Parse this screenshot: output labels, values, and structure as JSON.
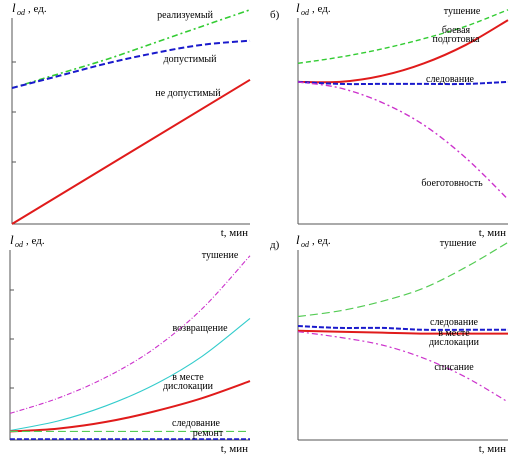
{
  "chart_data": [
    {
      "type": "line",
      "panel_label": "",
      "ylabel_main": "l",
      "ylabel_sub": "od",
      "ylabel_unit": ", ед.",
      "xlabel": "t, мин",
      "xlim": [
        0,
        10
      ],
      "ylim": [
        0,
        10
      ],
      "series": [
        {
          "name": "реализуемый",
          "color": "#33cc33",
          "dash": "6,3,2,3",
          "width": 1.6,
          "x": [
            0,
            2,
            4,
            6,
            8,
            10
          ],
          "y": [
            6.6,
            7.3,
            8.0,
            8.8,
            9.6,
            10.4
          ]
        },
        {
          "name": "допустимый",
          "color": "#1a1acc",
          "dash": "6,3",
          "width": 2,
          "x": [
            0,
            2,
            4,
            6,
            8,
            10
          ],
          "y": [
            6.6,
            7.2,
            7.8,
            8.3,
            8.7,
            8.9
          ]
        },
        {
          "name": "не допустимый",
          "color": "#e01b1b",
          "dash": "",
          "width": 2,
          "x": [
            0,
            10
          ],
          "y": [
            0,
            7.0
          ]
        }
      ]
    },
    {
      "type": "line",
      "panel_label": "б)",
      "ylabel_main": "l",
      "ylabel_sub": "od",
      "ylabel_unit": ", ед.",
      "xlabel": "t, мин",
      "xlim": [
        0,
        10
      ],
      "ylim": [
        0,
        10
      ],
      "series": [
        {
          "name": "тушение",
          "color": "#33cc33",
          "dash": "5,3",
          "width": 1.4,
          "x": [
            0,
            2,
            4,
            6,
            8,
            10
          ],
          "y": [
            7.8,
            8.1,
            8.5,
            9.0,
            9.6,
            10.4
          ]
        },
        {
          "name": "боевая подготовка",
          "color": "#e01b1b",
          "dash": "",
          "width": 2,
          "x": [
            0,
            2,
            4,
            6,
            8,
            10
          ],
          "y": [
            6.9,
            6.9,
            7.2,
            7.8,
            8.7,
            9.9
          ]
        },
        {
          "name": "следование",
          "color": "#1a1acc",
          "dash": "5,2",
          "width": 2,
          "x": [
            0,
            2,
            4,
            6,
            8,
            10
          ],
          "y": [
            6.9,
            6.8,
            6.8,
            6.8,
            6.8,
            6.9
          ]
        },
        {
          "name": "боеготовность",
          "color": "#cc33cc",
          "dash": "6,3,2,3",
          "width": 1.4,
          "x": [
            0,
            2,
            4,
            6,
            8,
            10
          ],
          "y": [
            6.9,
            6.6,
            5.9,
            4.8,
            3.2,
            1.2
          ]
        }
      ]
    },
    {
      "type": "line",
      "panel_label": "",
      "ylabel_main": "l",
      "ylabel_sub": "od",
      "ylabel_unit": ", ед.",
      "xlabel": "t, мин",
      "xlim": [
        0,
        10
      ],
      "ylim": [
        0,
        10
      ],
      "series": [
        {
          "name": "тушение",
          "color": "#cc33cc",
          "dash": "5,2,1,2",
          "width": 1.1,
          "x": [
            0,
            2,
            4,
            6,
            8,
            10
          ],
          "y": [
            1.4,
            2.2,
            3.3,
            4.8,
            6.9,
            9.7
          ]
        },
        {
          "name": "возвращение",
          "color": "#33cccc",
          "dash": "",
          "width": 1.1,
          "x": [
            0,
            2,
            4,
            6,
            8,
            10
          ],
          "y": [
            0.5,
            1.0,
            1.8,
            2.9,
            4.4,
            6.4
          ]
        },
        {
          "name": "в месте дислокации",
          "color": "#e01b1b",
          "dash": "",
          "width": 2,
          "x": [
            0,
            2,
            4,
            6,
            8,
            10
          ],
          "y": [
            0.45,
            0.6,
            0.95,
            1.5,
            2.2,
            3.1
          ]
        },
        {
          "name": "следование",
          "color": "#55cc55",
          "dash": "8,4",
          "width": 1.1,
          "x": [
            0,
            10
          ],
          "y": [
            0.45,
            0.45
          ]
        },
        {
          "name": "ремонт",
          "color": "#1a1acc",
          "dash": "5,2",
          "width": 1.6,
          "x": [
            0,
            10
          ],
          "y": [
            0.05,
            0.05
          ]
        }
      ]
    },
    {
      "type": "line",
      "panel_label": "д)",
      "ylabel_main": "l",
      "ylabel_sub": "od",
      "ylabel_unit": ", ед.",
      "xlabel": "t, мин",
      "xlim": [
        0,
        10
      ],
      "ylim": [
        0,
        10
      ],
      "series": [
        {
          "name": "тушение",
          "color": "#55cc55",
          "dash": "8,4",
          "width": 1.2,
          "x": [
            0,
            2,
            4,
            6,
            8,
            10
          ],
          "y": [
            6.5,
            6.8,
            7.3,
            8.0,
            9.1,
            10.4
          ]
        },
        {
          "name": "следование",
          "color": "#1a1acc",
          "dash": "5,2",
          "width": 2,
          "x": [
            0,
            2,
            4,
            6,
            8,
            10
          ],
          "y": [
            6.0,
            5.9,
            5.9,
            5.8,
            5.8,
            5.8
          ]
        },
        {
          "name": "в месте дислокации",
          "color": "#e01b1b",
          "dash": "",
          "width": 2,
          "x": [
            0,
            2,
            4,
            6,
            8,
            10
          ],
          "y": [
            5.75,
            5.7,
            5.65,
            5.6,
            5.6,
            5.6
          ]
        },
        {
          "name": "списание",
          "color": "#cc33cc",
          "dash": "6,3,2,3",
          "width": 1.2,
          "x": [
            0,
            2,
            4,
            6,
            8,
            10
          ],
          "y": [
            5.7,
            5.4,
            5.0,
            4.3,
            3.3,
            2.0
          ]
        }
      ]
    }
  ]
}
